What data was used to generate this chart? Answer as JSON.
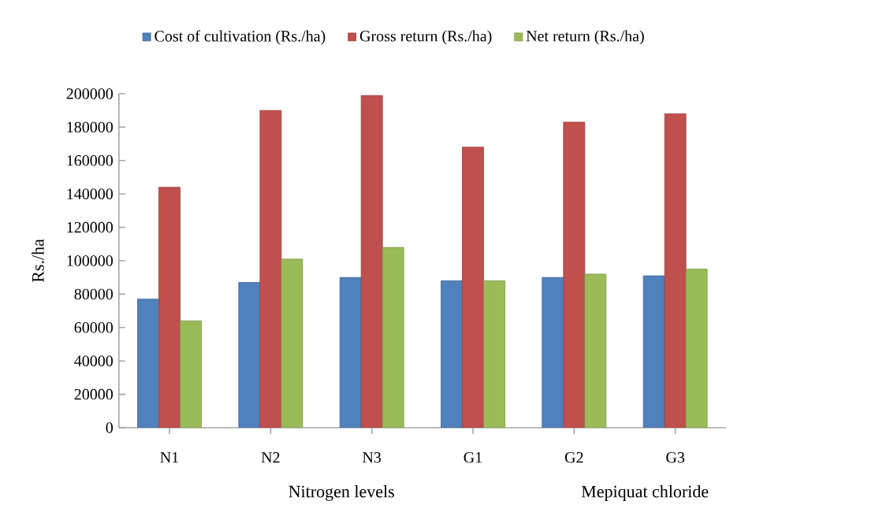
{
  "chart_data": {
    "type": "bar",
    "categories": [
      "N1",
      "N2",
      "N3",
      "G1",
      "G2",
      "G3"
    ],
    "series": [
      {
        "name": "Cost of cultivation (Rs./ha)",
        "color": "#4f81bd",
        "values": [
          77000,
          87000,
          90000,
          88000,
          90000,
          91000
        ]
      },
      {
        "name": "Gross return (Rs./ha)",
        "color": "#c0504d",
        "values": [
          144000,
          190000,
          199000,
          168000,
          183000,
          188000
        ]
      },
      {
        "name": "Net return (Rs./ha)",
        "color": "#9bbb59",
        "values": [
          64000,
          101000,
          108000,
          88000,
          92000,
          95000
        ]
      }
    ],
    "ylabel": "Rs./ha",
    "ylim": [
      0,
      200000
    ],
    "yticks": [
      0,
      20000,
      40000,
      60000,
      80000,
      100000,
      120000,
      140000,
      160000,
      180000,
      200000
    ],
    "annotations": [
      "Nitrogen levels",
      "Mepiquat chloride"
    ],
    "legend": "top",
    "grid": false
  }
}
